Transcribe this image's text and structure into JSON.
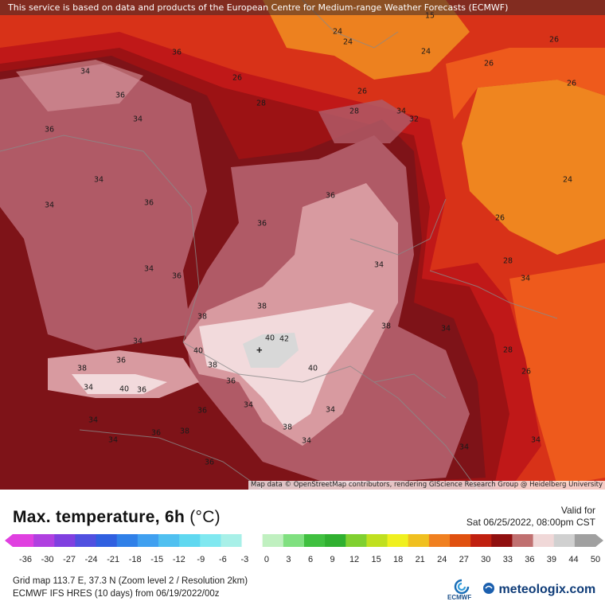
{
  "header": {
    "disclaimer": "This service is based on data and products of the European Centre for Medium-range Weather Forecasts (ECMWF)"
  },
  "map": {
    "attribution": "Map data © OpenStreetMap contributors, rendering GIScience Research Group @ Heidelberg University",
    "marker_symbol": "+",
    "isotherm_labels": [
      {
        "id": "l1",
        "text": "15"
      },
      {
        "id": "l2",
        "text": "24"
      },
      {
        "id": "l3",
        "text": "24"
      },
      {
        "id": "l4",
        "text": "24"
      },
      {
        "id": "l5",
        "text": "26"
      },
      {
        "id": "l6",
        "text": "26"
      },
      {
        "id": "l7",
        "text": "26"
      },
      {
        "id": "l8",
        "text": "26"
      },
      {
        "id": "l9",
        "text": "36"
      },
      {
        "id": "l10",
        "text": "34"
      },
      {
        "id": "l11",
        "text": "36"
      },
      {
        "id": "l12",
        "text": "34"
      },
      {
        "id": "l13",
        "text": "36"
      },
      {
        "id": "l14",
        "text": "34"
      },
      {
        "id": "l15",
        "text": "36"
      },
      {
        "id": "l16",
        "text": "36"
      },
      {
        "id": "l17",
        "text": "34"
      },
      {
        "id": "l18",
        "text": "36"
      },
      {
        "id": "l19",
        "text": "36"
      },
      {
        "id": "l20",
        "text": "34"
      },
      {
        "id": "l21",
        "text": "36"
      },
      {
        "id": "l22",
        "text": "38"
      },
      {
        "id": "l23",
        "text": "38"
      },
      {
        "id": "l24",
        "text": "40"
      },
      {
        "id": "l25",
        "text": "40"
      },
      {
        "id": "l26",
        "text": "42"
      },
      {
        "id": "l27",
        "text": "38"
      },
      {
        "id": "l28",
        "text": "40"
      },
      {
        "id": "l29",
        "text": "38"
      },
      {
        "id": "l30",
        "text": "36"
      },
      {
        "id": "l31",
        "text": "40"
      },
      {
        "id": "l32",
        "text": "36"
      },
      {
        "id": "l33",
        "text": "34"
      },
      {
        "id": "l34",
        "text": "38"
      },
      {
        "id": "l35",
        "text": "36"
      },
      {
        "id": "l36",
        "text": "38"
      },
      {
        "id": "l37",
        "text": "34"
      },
      {
        "id": "l38",
        "text": "36"
      },
      {
        "id": "l39",
        "text": "34"
      },
      {
        "id": "l40",
        "text": "34"
      },
      {
        "id": "l41",
        "text": "38"
      },
      {
        "id": "l42",
        "text": "36"
      },
      {
        "id": "l43",
        "text": "34"
      },
      {
        "id": "l44",
        "text": "34"
      },
      {
        "id": "l45",
        "text": "28"
      },
      {
        "id": "l46",
        "text": "34"
      },
      {
        "id": "l47",
        "text": "24"
      },
      {
        "id": "l48",
        "text": "26"
      },
      {
        "id": "l49",
        "text": "28"
      },
      {
        "id": "l50",
        "text": "34"
      },
      {
        "id": "l51",
        "text": "32"
      },
      {
        "id": "l52",
        "text": "34"
      },
      {
        "id": "l53",
        "text": "28"
      },
      {
        "id": "l54",
        "text": "34"
      },
      {
        "id": "l55",
        "text": "34"
      },
      {
        "id": "l56",
        "text": "26"
      },
      {
        "id": "l57",
        "text": "28"
      },
      {
        "id": "l58",
        "text": "26"
      },
      {
        "id": "l59",
        "text": "34"
      },
      {
        "id": "l60",
        "text": "34"
      }
    ]
  },
  "legend": {
    "title": "Max. temperature, 6h",
    "unit": "(°C)",
    "valid_label": "Valid for",
    "valid_value": "Sat 06/25/2022, 08:00pm CST",
    "ticks": [
      "-36",
      "-30",
      "-27",
      "-24",
      "-21",
      "-18",
      "-15",
      "-12",
      "-9",
      "-6",
      "-3",
      "0",
      "3",
      "6",
      "9",
      "12",
      "15",
      "18",
      "21",
      "24",
      "27",
      "30",
      "33",
      "36",
      "39",
      "44",
      "50"
    ],
    "colors": [
      "#e040e0",
      "#b040e0",
      "#8040e0",
      "#5050e0",
      "#3060e0",
      "#3080e8",
      "#40a0f0",
      "#50c0f0",
      "#60d8f0",
      "#80e8f0",
      "#a8f0e8",
      "#ffffff",
      "#c0f0c0",
      "#80e080",
      "#40c040",
      "#30b030",
      "#80d030",
      "#c0e020",
      "#f0f020",
      "#f0c020",
      "#f08020",
      "#e05010",
      "#c02010",
      "#901010",
      "#c07070",
      "#f0d8d8",
      "#d0d0d0",
      "#a0a0a0"
    ],
    "map_colors": {
      "t24": "#f08a20",
      "t26": "#ee5a1c",
      "t28": "#d83218",
      "t30": "#c01818",
      "t32": "#9c1214",
      "t34": "#7e1318",
      "t36": "#b05a66",
      "t38": "#d89aa0",
      "t40": "#f2dadc",
      "t42": "#d8d8d8"
    }
  },
  "footer": {
    "grid_info": "Grid map 113.7 E, 37.3 N (Zoom level 2 / Resolution 2km)",
    "model_info": "ECMWF IFS HRES (10 days) from 06/19/2022/00z",
    "ecmwf_logo": "ECMWF",
    "brand": "meteologix.com"
  }
}
